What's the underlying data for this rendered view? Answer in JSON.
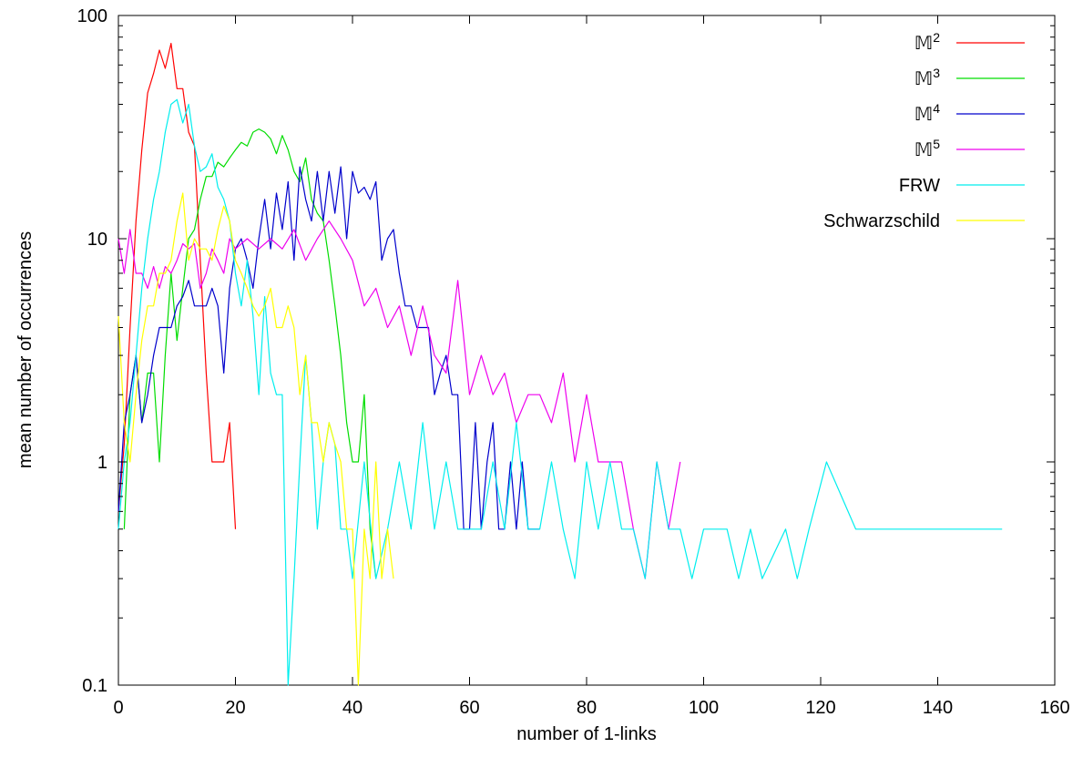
{
  "chart_data": {
    "type": "line",
    "title": "",
    "xlabel": "number of 1-links",
    "ylabel": "mean number of occurrences",
    "xlim": [
      0,
      160
    ],
    "ylim": [
      0.1,
      100
    ],
    "yscale": "log",
    "grid": false,
    "legend_position": "top-right",
    "x_ticks": [
      "0",
      "20",
      "40",
      "60",
      "80",
      "100",
      "120",
      "140",
      "160"
    ],
    "y_ticks": [
      "0.1",
      "1",
      "10",
      "100"
    ],
    "series": [
      {
        "name": "M",
        "name_sup": "2",
        "color": "#ff0000",
        "x": [
          0,
          1,
          2,
          3,
          4,
          5,
          6,
          7,
          8,
          9,
          10,
          11,
          12,
          13,
          14,
          15,
          16,
          17,
          18,
          19,
          20
        ],
        "y": [
          0.6,
          1.2,
          4,
          12,
          25,
          45,
          55,
          70,
          58,
          75,
          47,
          47,
          30,
          26,
          8,
          2.5,
          1,
          1,
          1,
          1.5,
          0.5
        ]
      },
      {
        "name": "M",
        "name_sup": "3",
        "color": "#00dd00",
        "x": [
          1,
          2,
          3,
          4,
          5,
          6,
          7,
          8,
          9,
          10,
          11,
          12,
          13,
          14,
          15,
          16,
          17,
          18,
          19,
          20,
          21,
          22,
          23,
          24,
          25,
          26,
          27,
          28,
          29,
          30,
          31,
          32,
          33,
          34,
          35,
          36,
          37,
          38,
          39,
          40,
          41,
          42,
          43,
          44
        ],
        "y": [
          0.5,
          2,
          3,
          1.5,
          2.5,
          2.5,
          1,
          3,
          7,
          3.5,
          6,
          10,
          11,
          15,
          19,
          19,
          22,
          21,
          23,
          25,
          27,
          26,
          30,
          31,
          30,
          28,
          24,
          29,
          25,
          20,
          18,
          23,
          15,
          13,
          12,
          8,
          5,
          3,
          1.5,
          1,
          1,
          2,
          0.5,
          0.3
        ]
      },
      {
        "name": "M",
        "name_sup": "4",
        "color": "#0000cc",
        "x": [
          0,
          1,
          2,
          3,
          4,
          5,
          6,
          7,
          8,
          9,
          10,
          11,
          12,
          13,
          14,
          15,
          16,
          17,
          18,
          19,
          20,
          21,
          22,
          23,
          24,
          25,
          26,
          27,
          28,
          29,
          30,
          31,
          32,
          33,
          34,
          35,
          36,
          37,
          38,
          39,
          40,
          41,
          42,
          43,
          44,
          45,
          46,
          47,
          48,
          49,
          50,
          51,
          52,
          53,
          54,
          55,
          56,
          57,
          58,
          59,
          60,
          61,
          62,
          63,
          64,
          65,
          66,
          67,
          68,
          69,
          70,
          71,
          72
        ],
        "y": [
          0.6,
          1.5,
          2,
          3,
          1.5,
          2,
          3,
          4,
          4,
          4,
          5,
          5.5,
          6.5,
          5,
          5,
          5,
          6,
          5,
          2.5,
          6,
          9,
          10,
          8,
          6,
          10,
          15,
          9,
          16,
          11,
          18,
          8,
          21,
          15,
          12,
          20,
          12,
          20,
          13,
          21,
          10,
          20,
          16,
          17,
          15,
          18,
          8,
          10,
          11,
          7,
          5,
          5,
          4,
          4,
          4,
          2,
          2.5,
          3,
          2,
          2,
          0.5,
          0.5,
          1.5,
          0.5,
          1,
          1.5,
          0.5,
          0.5,
          1,
          0.5,
          1,
          0.5,
          0.5,
          0.5
        ]
      },
      {
        "name": "M",
        "name_sup": "5",
        "color": "#ee00ee",
        "x": [
          0,
          1,
          2,
          3,
          4,
          5,
          6,
          7,
          8,
          9,
          10,
          11,
          12,
          13,
          14,
          15,
          16,
          17,
          18,
          19,
          20,
          22,
          24,
          26,
          28,
          30,
          32,
          34,
          36,
          38,
          40,
          42,
          44,
          46,
          48,
          50,
          52,
          54,
          56,
          58,
          60,
          62,
          64,
          66,
          68,
          70,
          72,
          74,
          76,
          78,
          80,
          82,
          84,
          86,
          88,
          90,
          92,
          94,
          96
        ],
        "y": [
          10,
          7,
          11,
          7,
          7,
          6,
          7.5,
          6,
          7.5,
          7,
          8,
          9.5,
          9,
          9.5,
          6,
          7,
          9,
          8,
          7,
          10,
          9,
          10,
          9,
          10,
          9,
          11,
          8,
          10,
          12,
          10,
          8,
          5,
          6,
          4,
          5,
          3,
          5,
          3,
          2.5,
          6.5,
          2,
          3,
          2,
          2.5,
          1.5,
          2,
          2,
          1.5,
          2.5,
          1,
          2,
          1,
          1,
          1,
          0.5,
          0.3,
          1,
          0.5,
          1
        ]
      },
      {
        "name": "FRW",
        "name_sup": "",
        "color": "#00eeee",
        "x": [
          0,
          1,
          2,
          3,
          4,
          5,
          6,
          7,
          8,
          9,
          10,
          11,
          12,
          13,
          14,
          15,
          16,
          17,
          18,
          19,
          20,
          21,
          22,
          23,
          24,
          25,
          26,
          27,
          28,
          29,
          30,
          31,
          32,
          33,
          34,
          35,
          36,
          37,
          38,
          39,
          40,
          42,
          44,
          46,
          48,
          50,
          52,
          54,
          56,
          58,
          60,
          62,
          64,
          66,
          68,
          70,
          72,
          74,
          76,
          78,
          80,
          82,
          84,
          86,
          88,
          90,
          92,
          94,
          96,
          98,
          100,
          102,
          104,
          106,
          108,
          110,
          114,
          116,
          118,
          121,
          126,
          130,
          151
        ],
        "y": [
          0.5,
          1,
          1.5,
          3,
          6,
          10,
          15,
          20,
          30,
          40,
          42,
          33,
          40,
          26,
          20,
          21,
          24,
          17,
          15,
          12,
          7,
          5,
          8,
          4.5,
          2,
          5.5,
          2.5,
          2,
          2,
          0.1,
          0.3,
          1,
          3,
          1.5,
          0.5,
          1,
          1.5,
          1.2,
          0.5,
          0.5,
          0.3,
          1,
          0.3,
          0.5,
          1,
          0.5,
          1.5,
          0.5,
          1,
          0.5,
          0.5,
          0.5,
          1,
          0.5,
          1.5,
          0.5,
          0.5,
          1,
          0.5,
          0.3,
          1,
          0.5,
          1,
          0.5,
          0.5,
          0.3,
          1,
          0.5,
          0.5,
          0.3,
          0.5,
          0.5,
          0.5,
          0.3,
          0.5,
          0.3,
          0.5,
          0.3,
          0.5,
          1,
          0.5,
          0.5,
          0.5
        ]
      },
      {
        "name": "Schwarzschild",
        "name_sup": "",
        "color": "#ffff00",
        "x": [
          0,
          1,
          2,
          3,
          4,
          5,
          6,
          7,
          8,
          9,
          10,
          11,
          12,
          13,
          14,
          15,
          16,
          17,
          18,
          19,
          20,
          21,
          22,
          23,
          24,
          25,
          26,
          27,
          28,
          29,
          30,
          31,
          32,
          33,
          34,
          35,
          36,
          37,
          38,
          39,
          40,
          41,
          42,
          43,
          44,
          45,
          46,
          47
        ],
        "y": [
          4.5,
          1.5,
          1,
          2,
          3.5,
          5,
          5,
          7,
          7,
          8,
          12,
          16,
          8,
          10,
          9,
          9,
          8,
          11,
          14,
          12,
          8,
          7,
          6,
          5,
          4.5,
          5,
          6,
          4,
          4,
          5,
          4,
          2,
          3,
          1.5,
          1.5,
          1,
          1.5,
          1.2,
          1,
          0.5,
          0.5,
          0.1,
          0.5,
          0.3,
          1,
          0.3,
          0.5,
          0.3
        ]
      }
    ]
  }
}
